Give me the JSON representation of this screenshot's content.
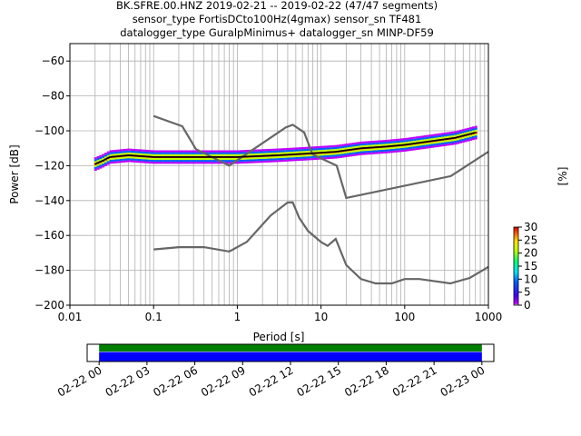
{
  "title": {
    "line1": "BK.SFRE.00.HNZ   2019-02-21 -- 2019-02-22  (47/47 segments)",
    "line2": "sensor_type FortisDCto100Hz(4gmax) sensor_sn TF481",
    "line3": "datalogger_type GuralpMinimus+ datalogger_sn MINP-DF59"
  },
  "chart_data": [
    {
      "type": "heatmap",
      "xlabel": "Period [s]",
      "ylabel": "Power [dB]",
      "xscale": "log",
      "xlim": [
        0.01,
        1000
      ],
      "ylim": [
        -200,
        -50
      ],
      "grid": true,
      "x_tick_labels": [
        "0.01",
        "0.1",
        "1",
        "10",
        "100",
        "1000"
      ],
      "x_tick_values": [
        0.01,
        0.1,
        1,
        10,
        100,
        1000
      ],
      "y_tick_labels": [
        "−200",
        "−180",
        "−160",
        "−140",
        "−120",
        "−100",
        "−80",
        "−60"
      ],
      "y_tick_values": [
        -200,
        -180,
        -160,
        -140,
        -120,
        -100,
        -80,
        -60
      ],
      "colorbar": {
        "label": "[%]",
        "ticks": [
          "0",
          "5",
          "10",
          "15",
          "20",
          "25",
          "30"
        ],
        "tick_values": [
          0,
          5,
          10,
          15,
          20,
          25,
          30
        ],
        "range": [
          0,
          30
        ]
      },
      "noise_model_high": {
        "period": [
          0.1,
          0.22,
          0.32,
          0.8,
          3.8,
          4.6,
          6.3,
          7.9,
          15.4,
          20,
          354.8,
          1000
        ],
        "power_db": [
          -91.5,
          -97.4,
          -110.5,
          -120,
          -98,
          -96.5,
          -101,
          -113.5,
          -120,
          -138.5,
          -126,
          -112
        ]
      },
      "noise_model_low": {
        "period": [
          0.1,
          0.2,
          0.4,
          0.8,
          1.3,
          2.5,
          4.0,
          4.6,
          5.5,
          7.0,
          10.0,
          12.0,
          15.0,
          20.0,
          30.0,
          45.0,
          70.0,
          100.0,
          150.0,
          350.0,
          600.0,
          1000.0
        ],
        "power_db": [
          -168,
          -166.7,
          -166.7,
          -169.2,
          -163.7,
          -148.6,
          -141.1,
          -141.1,
          -150,
          -157.4,
          -163.8,
          -166,
          -162,
          -177,
          -185,
          -187.5,
          -187.5,
          -185,
          -185,
          -187.5,
          -184.4,
          -178
        ]
      },
      "mode_curve": {
        "period": [
          0.02,
          0.025,
          0.03,
          0.05,
          0.1,
          0.3,
          1.0,
          3.0,
          7.0,
          15.0,
          30.0,
          60.0,
          100.0,
          200.0,
          400.0,
          700.0
        ],
        "power_db": [
          -119,
          -117,
          -115,
          -114,
          -115,
          -115,
          -115,
          -114,
          -113,
          -112,
          -110,
          -109,
          -108,
          -106,
          -104,
          -101
        ]
      },
      "psd_peaks": {
        "period": [
          0.035,
          0.045,
          0.06,
          0.08,
          0.1
        ],
        "power_db": [
          -104,
          -105,
          -108,
          -112,
          -114
        ]
      },
      "scatter_highs": {
        "period": [
          20,
          30,
          50,
          80,
          120,
          200,
          350,
          500,
          600
        ],
        "power_db": [
          -106,
          -104,
          -103,
          -102,
          -101,
          -99,
          -96,
          -93,
          -90
        ]
      }
    },
    {
      "type": "bar",
      "orientation": "horizontal-timeline",
      "x_tick_labels": [
        "02-22 00",
        "02-22 03",
        "02-22 06",
        "02-22 09",
        "02-22 12",
        "02-22 15",
        "02-22 18",
        "02-22 21",
        "02-23 00"
      ],
      "xlim": [
        "2019-02-21 23:15",
        "2019-02-23 00:45"
      ],
      "series": [
        {
          "color": "#008000",
          "start": "2019-02-22 00:00",
          "end": "2019-02-23 00:00"
        },
        {
          "color": "#0000ff",
          "start": "2019-02-22 00:00",
          "end": "2019-02-23 00:00"
        }
      ]
    }
  ],
  "colors": {
    "noise_model": "#666666",
    "mode": "#000000",
    "timeline_green": "#008000",
    "timeline_blue": "#0000ff"
  }
}
